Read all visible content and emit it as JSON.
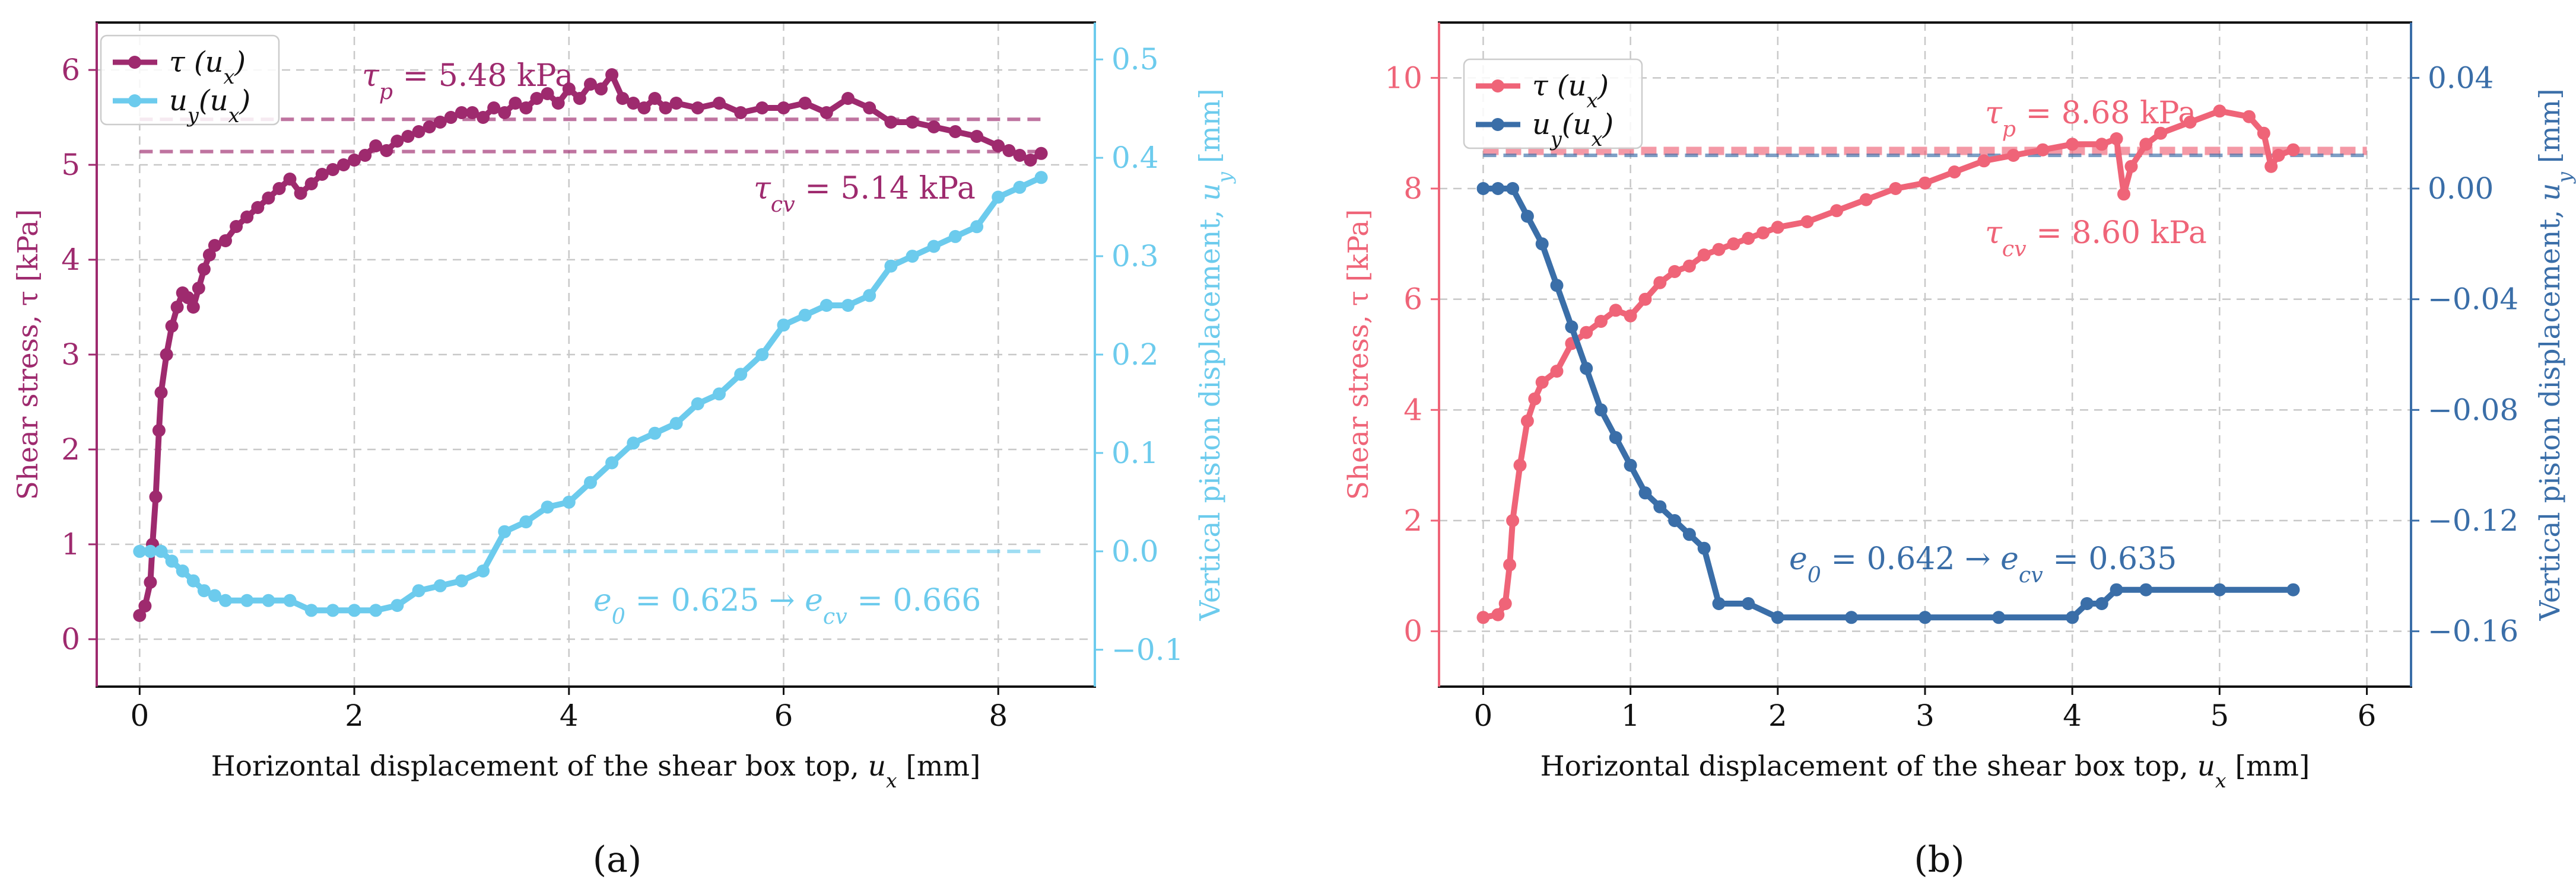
{
  "colors": {
    "a_tau": "#9e2a6e",
    "a_uy": "#6ccbed",
    "b_tau": "#ef6478",
    "b_uy": "#3a6ea8",
    "grid": "#c8c8c8",
    "axes": "#111111"
  },
  "chart_data": [
    {
      "type": "line",
      "panel_caption": "(a)",
      "xlabel": "Horizontal displacement of the shear box top, u_x [mm]",
      "ylabel_left": "Shear stress, τ [kPa]",
      "ylabel_right": "Vertical piston displacement, u_y [mm]",
      "xlim": [
        -0.4,
        8.9
      ],
      "ylim_left": [
        -0.5,
        6.5
      ],
      "ylim_right": [
        -0.1375,
        0.5375
      ],
      "xticks": [
        0,
        2,
        4,
        6,
        8
      ],
      "yticks_left": [
        0,
        1,
        2,
        3,
        4,
        5,
        6
      ],
      "yticks_right": [
        -0.1,
        0.0,
        0.1,
        0.2,
        0.3,
        0.4,
        0.5
      ],
      "yticklabels_right": [
        "−0.1",
        "0.0",
        "0.1",
        "0.2",
        "0.3",
        "0.4",
        "0.5"
      ],
      "legend": [
        "τ (u_x)",
        "u_y(u_x)"
      ],
      "legend_position": "top-left",
      "hlines": [
        {
          "axis": "left",
          "y": 5.48,
          "x": [
            0,
            8.4
          ],
          "series": "tau"
        },
        {
          "axis": "left",
          "y": 5.14,
          "x": [
            0,
            8.4
          ],
          "series": "tau"
        },
        {
          "axis": "right",
          "y": 0.0,
          "x": [
            0,
            8.4
          ],
          "series": "uy"
        }
      ],
      "annotations": {
        "tau_p": "τp = 5.48 kPa",
        "tau_cv": "τcv = 5.14 kPa",
        "void_ratio": "e0 = 0.625 → ecv = 0.666"
      },
      "series": [
        {
          "name": "tau",
          "axis": "left",
          "x": [
            0,
            0.05,
            0.1,
            0.12,
            0.15,
            0.18,
            0.2,
            0.25,
            0.3,
            0.35,
            0.4,
            0.45,
            0.5,
            0.55,
            0.6,
            0.65,
            0.7,
            0.8,
            0.9,
            1.0,
            1.1,
            1.2,
            1.3,
            1.4,
            1.5,
            1.6,
            1.7,
            1.8,
            1.9,
            2.0,
            2.1,
            2.2,
            2.3,
            2.4,
            2.5,
            2.6,
            2.7,
            2.8,
            2.9,
            3.0,
            3.1,
            3.2,
            3.3,
            3.4,
            3.5,
            3.6,
            3.7,
            3.8,
            3.9,
            4.0,
            4.1,
            4.2,
            4.3,
            4.4,
            4.5,
            4.6,
            4.7,
            4.8,
            4.9,
            5.0,
            5.2,
            5.4,
            5.6,
            5.8,
            6.0,
            6.2,
            6.4,
            6.6,
            6.8,
            7.0,
            7.2,
            7.4,
            7.6,
            7.8,
            8.0,
            8.1,
            8.2,
            8.3,
            8.4
          ],
          "y": [
            0.25,
            0.35,
            0.6,
            1.0,
            1.5,
            2.2,
            2.6,
            3.0,
            3.3,
            3.5,
            3.65,
            3.6,
            3.5,
            3.7,
            3.9,
            4.05,
            4.15,
            4.2,
            4.35,
            4.45,
            4.55,
            4.65,
            4.75,
            4.85,
            4.7,
            4.8,
            4.9,
            4.95,
            5.0,
            5.05,
            5.1,
            5.2,
            5.15,
            5.25,
            5.3,
            5.35,
            5.4,
            5.45,
            5.5,
            5.55,
            5.55,
            5.5,
            5.6,
            5.55,
            5.65,
            5.6,
            5.7,
            5.75,
            5.65,
            5.8,
            5.7,
            5.85,
            5.8,
            5.95,
            5.7,
            5.65,
            5.6,
            5.7,
            5.6,
            5.65,
            5.6,
            5.65,
            5.55,
            5.6,
            5.6,
            5.65,
            5.55,
            5.7,
            5.6,
            5.45,
            5.45,
            5.4,
            5.35,
            5.3,
            5.2,
            5.15,
            5.1,
            5.05,
            5.12
          ]
        },
        {
          "name": "uy",
          "axis": "right",
          "x": [
            0,
            0.1,
            0.2,
            0.3,
            0.4,
            0.5,
            0.6,
            0.7,
            0.8,
            1.0,
            1.2,
            1.4,
            1.6,
            1.8,
            2.0,
            2.2,
            2.4,
            2.6,
            2.8,
            3.0,
            3.2,
            3.4,
            3.6,
            3.8,
            4.0,
            4.2,
            4.4,
            4.6,
            4.8,
            5.0,
            5.2,
            5.4,
            5.6,
            5.8,
            6.0,
            6.2,
            6.4,
            6.6,
            6.8,
            7.0,
            7.2,
            7.4,
            7.6,
            7.8,
            8.0,
            8.2,
            8.4
          ],
          "y": [
            0.0,
            0.0,
            0.0,
            -0.01,
            -0.02,
            -0.03,
            -0.04,
            -0.045,
            -0.05,
            -0.05,
            -0.05,
            -0.05,
            -0.06,
            -0.06,
            -0.06,
            -0.06,
            -0.055,
            -0.04,
            -0.035,
            -0.03,
            -0.02,
            0.02,
            0.03,
            0.045,
            0.05,
            0.07,
            0.09,
            0.11,
            0.12,
            0.13,
            0.15,
            0.16,
            0.18,
            0.2,
            0.23,
            0.24,
            0.25,
            0.25,
            0.26,
            0.29,
            0.3,
            0.31,
            0.32,
            0.33,
            0.36,
            0.37,
            0.38
          ]
        }
      ]
    },
    {
      "type": "line",
      "panel_caption": "(b)",
      "xlabel": "Horizontal displacement of the shear box top, u_x [mm]",
      "ylabel_left": "Shear stress, τ [kPa]",
      "ylabel_right": "Vertical piston displacement, u_y [mm]",
      "xlim": [
        -0.3,
        6.3
      ],
      "ylim_left": [
        -1.0,
        11.0
      ],
      "ylim_right": [
        -0.18,
        0.06
      ],
      "xticks": [
        0,
        1,
        2,
        3,
        4,
        5,
        6
      ],
      "yticks_left": [
        0,
        2,
        4,
        6,
        8,
        10
      ],
      "yticks_right": [
        -0.16,
        -0.12,
        -0.08,
        -0.04,
        0.0,
        0.04
      ],
      "yticklabels_right": [
        "−0.16",
        "−0.12",
        "−0.08",
        "−0.04",
        "0.00",
        "0.04"
      ],
      "legend": [
        "τ (u_x)",
        "u_y(u_x)"
      ],
      "legend_position": "top-left",
      "hlines": [
        {
          "axis": "left",
          "y": 8.68,
          "x": [
            0,
            6
          ],
          "series": "tau"
        },
        {
          "axis": "left",
          "y": 8.6,
          "x": [
            0,
            6
          ],
          "series": "uy"
        }
      ],
      "annotations": {
        "tau_p": "τp = 8.68 kPa",
        "tau_cv": "τcv = 8.60 kPa",
        "void_ratio": "e0 = 0.642 → ecv = 0.635"
      },
      "series": [
        {
          "name": "tau",
          "axis": "left",
          "x": [
            0,
            0.1,
            0.15,
            0.18,
            0.2,
            0.25,
            0.3,
            0.35,
            0.4,
            0.5,
            0.6,
            0.7,
            0.8,
            0.9,
            1.0,
            1.1,
            1.2,
            1.3,
            1.4,
            1.5,
            1.6,
            1.7,
            1.8,
            1.9,
            2.0,
            2.2,
            2.4,
            2.6,
            2.8,
            3.0,
            3.2,
            3.4,
            3.6,
            3.8,
            4.0,
            4.2,
            4.3,
            4.35,
            4.4,
            4.5,
            4.6,
            4.8,
            5.0,
            5.2,
            5.3,
            5.35,
            5.4,
            5.5
          ],
          "y": [
            0.25,
            0.3,
            0.5,
            1.2,
            2.0,
            3.0,
            3.8,
            4.2,
            4.5,
            4.7,
            5.2,
            5.4,
            5.6,
            5.8,
            5.7,
            6.0,
            6.3,
            6.5,
            6.6,
            6.8,
            6.9,
            7.0,
            7.1,
            7.2,
            7.3,
            7.4,
            7.6,
            7.8,
            8.0,
            8.1,
            8.3,
            8.5,
            8.6,
            8.7,
            8.8,
            8.8,
            8.9,
            7.9,
            8.4,
            8.8,
            9.0,
            9.2,
            9.4,
            9.3,
            9.0,
            8.4,
            8.6,
            8.7
          ]
        },
        {
          "name": "uy",
          "axis": "right",
          "x": [
            0,
            0.1,
            0.2,
            0.3,
            0.4,
            0.5,
            0.6,
            0.7,
            0.8,
            0.9,
            1.0,
            1.1,
            1.2,
            1.3,
            1.4,
            1.5,
            1.6,
            1.8,
            2.0,
            2.5,
            3.0,
            3.5,
            4.0,
            4.1,
            4.2,
            4.3,
            4.5,
            5.0,
            5.5
          ],
          "y": [
            0.0,
            0.0,
            0.0,
            -0.01,
            -0.02,
            -0.035,
            -0.05,
            -0.065,
            -0.08,
            -0.09,
            -0.1,
            -0.11,
            -0.115,
            -0.12,
            -0.125,
            -0.13,
            -0.15,
            -0.15,
            -0.155,
            -0.155,
            -0.155,
            -0.155,
            -0.155,
            -0.15,
            -0.15,
            -0.145,
            -0.145,
            -0.145,
            -0.145
          ]
        }
      ]
    }
  ]
}
